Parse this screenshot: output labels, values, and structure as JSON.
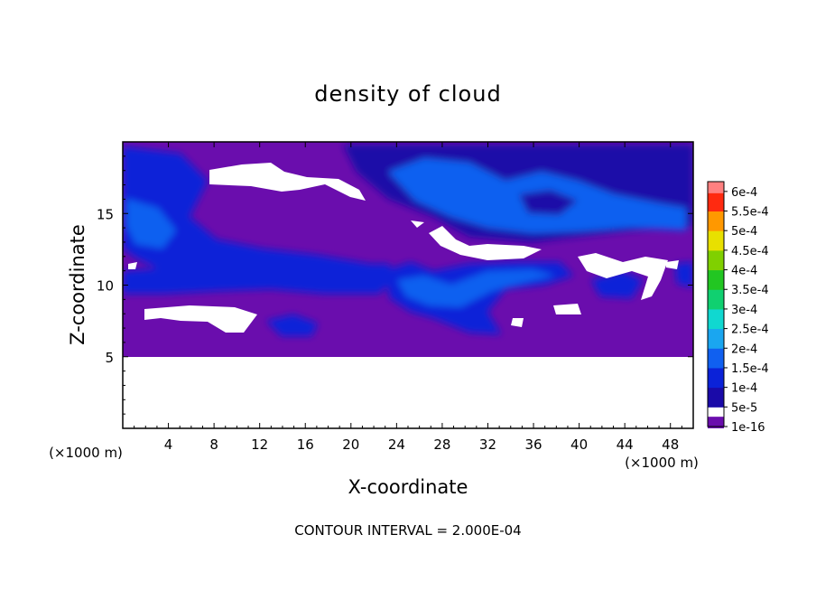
{
  "chart_data": {
    "type": "heatmap",
    "title": "density of cloud",
    "xlabel": "X-coordinate",
    "ylabel": "Z-coordinate",
    "x_unit": "(×1000 m)",
    "y_unit": "(×1000 m)",
    "xlim": [
      0,
      50
    ],
    "ylim": [
      0,
      20
    ],
    "x_ticks": [
      4,
      8,
      12,
      16,
      20,
      24,
      28,
      32,
      36,
      40,
      44,
      48
    ],
    "y_ticks": [
      5,
      10,
      15
    ],
    "footer": "CONTOUR INTERVAL = 2.000E-04",
    "colorbar": {
      "labels": [
        "1e-16",
        "5e-5",
        "1e-4",
        "1.5e-4",
        "2e-4",
        "2.5e-4",
        "3e-4",
        "3.5e-4",
        "4e-4",
        "4.5e-4",
        "5e-4",
        "5.5e-4",
        "6e-4"
      ],
      "colors": [
        "#6a0dad",
        "#1a0aa8",
        "#0b22d8",
        "#1060f0",
        "#1aa6f0",
        "#10d8d0",
        "#10d070",
        "#22c622",
        "#80d000",
        "#e8e000",
        "#ff9800",
        "#ff2a10",
        "#ff8080"
      ]
    },
    "fields": {
      "background_level": "1e-16",
      "no_data_below_z": 5,
      "blue_bands": [
        {
          "level": "5e-5",
          "region": "upper band, x 16–50, z 16–19.5"
        },
        {
          "level": "1.5e-4",
          "region": "upper core, x 22–50, z 15–18.5"
        },
        {
          "level": "1e-4",
          "region": "left band, x 0–10, z 11–17"
        },
        {
          "level": "1e-4",
          "region": "middle band, x 0–25, z 10–11.5"
        },
        {
          "level": "1.5e-4",
          "region": "central blob, x 23–37, z 7–11"
        }
      ]
    }
  }
}
